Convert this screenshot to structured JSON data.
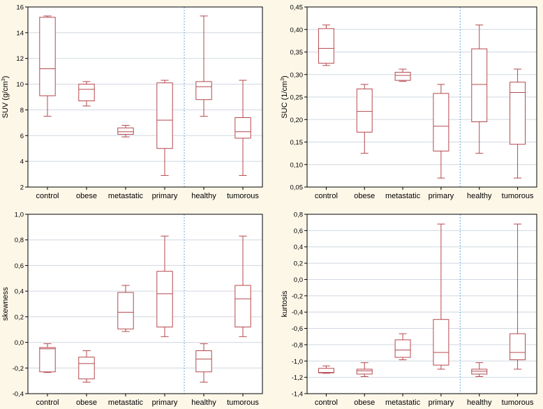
{
  "chart_data": [
    {
      "type": "boxplot",
      "ylabel_main": "SUV (g/cm",
      "ylabel_sup": "3",
      "ylabel_end": ")",
      "ylim": [
        2,
        16
      ],
      "yticks": [
        2,
        4,
        6,
        8,
        10,
        12,
        14,
        16
      ],
      "tick_labels": [
        "2",
        "4",
        "6",
        "8",
        "10",
        "12",
        "14",
        "16"
      ],
      "categories": [
        "control",
        "obese",
        "metastatic",
        "primary",
        "healthy",
        "tumorous"
      ],
      "separator_after": 4,
      "boxes": [
        {
          "min": 7.5,
          "q1": 9.1,
          "median": 11.2,
          "q3": 15.2,
          "max": 15.3
        },
        {
          "min": 8.3,
          "q1": 8.7,
          "median": 9.6,
          "q3": 10.0,
          "max": 10.2
        },
        {
          "min": 5.9,
          "q1": 6.1,
          "median": 6.3,
          "q3": 6.6,
          "max": 6.8
        },
        {
          "min": 2.9,
          "q1": 5.0,
          "median": 7.2,
          "q3": 10.1,
          "max": 10.3
        },
        {
          "min": 7.5,
          "q1": 8.8,
          "median": 9.8,
          "q3": 10.2,
          "max": 15.3
        },
        {
          "min": 2.9,
          "q1": 5.8,
          "median": 6.3,
          "q3": 7.4,
          "max": 10.3
        }
      ]
    },
    {
      "type": "boxplot",
      "ylabel_main": "SUC (1/cm",
      "ylabel_sup": "3",
      "ylabel_end": ")",
      "ylim": [
        0.05,
        0.45
      ],
      "yticks": [
        0.05,
        0.1,
        0.15,
        0.2,
        0.25,
        0.3,
        0.35,
        0.4,
        0.45
      ],
      "tick_labels": [
        "0,05",
        "0,10",
        "0,15",
        "0,20",
        "0,25",
        "0,30",
        "0,35",
        "0,40",
        "0,45"
      ],
      "categories": [
        "control",
        "obese",
        "metastatic",
        "primary",
        "healthy",
        "tumorous"
      ],
      "separator_after": 4,
      "boxes": [
        {
          "min": 0.32,
          "q1": 0.325,
          "median": 0.358,
          "q3": 0.402,
          "max": 0.41
        },
        {
          "min": 0.125,
          "q1": 0.172,
          "median": 0.218,
          "q3": 0.268,
          "max": 0.278
        },
        {
          "min": 0.285,
          "q1": 0.287,
          "median": 0.298,
          "q3": 0.305,
          "max": 0.312
        },
        {
          "min": 0.07,
          "q1": 0.13,
          "median": 0.185,
          "q3": 0.258,
          "max": 0.278
        },
        {
          "min": 0.125,
          "q1": 0.195,
          "median": 0.278,
          "q3": 0.357,
          "max": 0.41
        },
        {
          "min": 0.07,
          "q1": 0.145,
          "median": 0.26,
          "q3": 0.283,
          "max": 0.312
        }
      ]
    },
    {
      "type": "boxplot",
      "ylabel_main": "skewness",
      "ylabel_sup": "",
      "ylabel_end": "",
      "ylim": [
        -0.4,
        1.0
      ],
      "yticks": [
        -0.4,
        -0.2,
        0.0,
        0.2,
        0.4,
        0.6,
        0.8,
        1.0
      ],
      "tick_labels": [
        "-0,4",
        "-0,2",
        "0,0",
        "0,2",
        "0,4",
        "0,6",
        "0,8",
        "1,0"
      ],
      "categories": [
        "control",
        "obese",
        "metastatic",
        "primary",
        "healthy",
        "tumorous"
      ],
      "separator_after": 4,
      "boxes": [
        {
          "min": -0.235,
          "q1": -0.23,
          "median": -0.05,
          "q3": -0.04,
          "max": -0.01
        },
        {
          "min": -0.31,
          "q1": -0.285,
          "median": -0.165,
          "q3": -0.115,
          "max": -0.065
        },
        {
          "min": 0.085,
          "q1": 0.105,
          "median": 0.235,
          "q3": 0.39,
          "max": 0.445
        },
        {
          "min": 0.045,
          "q1": 0.12,
          "median": 0.38,
          "q3": 0.555,
          "max": 0.83
        },
        {
          "min": -0.31,
          "q1": -0.23,
          "median": -0.13,
          "q3": -0.065,
          "max": -0.01
        },
        {
          "min": 0.045,
          "q1": 0.12,
          "median": 0.34,
          "q3": 0.445,
          "max": 0.83
        }
      ]
    },
    {
      "type": "boxplot",
      "ylabel_main": "kurtosis",
      "ylabel_sup": "",
      "ylabel_end": "",
      "ylim": [
        -1.4,
        0.8
      ],
      "yticks": [
        -1.4,
        -1.2,
        -1.0,
        -0.8,
        -0.6,
        -0.4,
        -0.2,
        0.0,
        0.2,
        0.4,
        0.6,
        0.8
      ],
      "tick_labels": [
        "-1,4",
        "-1,2",
        "-1,0",
        "-0,8",
        "-0,6",
        "-0,4",
        "-0,2",
        "0,0",
        "0,2",
        "0,4",
        "0,6",
        "0,8"
      ],
      "categories": [
        "control",
        "obese",
        "metastatic",
        "primary",
        "healthy",
        "tumorous"
      ],
      "separator_after": 4,
      "boxes": [
        {
          "min": -1.15,
          "q1": -1.145,
          "median": -1.14,
          "q3": -1.09,
          "max": -1.06
        },
        {
          "min": -1.19,
          "q1": -1.16,
          "median": -1.12,
          "q3": -1.1,
          "max": -1.02
        },
        {
          "min": -0.985,
          "q1": -0.955,
          "median": -0.865,
          "q3": -0.74,
          "max": -0.665
        },
        {
          "min": -1.1,
          "q1": -1.05,
          "median": -0.895,
          "q3": -0.49,
          "max": 0.68
        },
        {
          "min": -1.19,
          "q1": -1.16,
          "median": -1.125,
          "q3": -1.1,
          "max": -1.02
        },
        {
          "min": -1.1,
          "q1": -0.985,
          "median": -0.895,
          "q3": -0.665,
          "max": 0.68
        }
      ]
    }
  ]
}
